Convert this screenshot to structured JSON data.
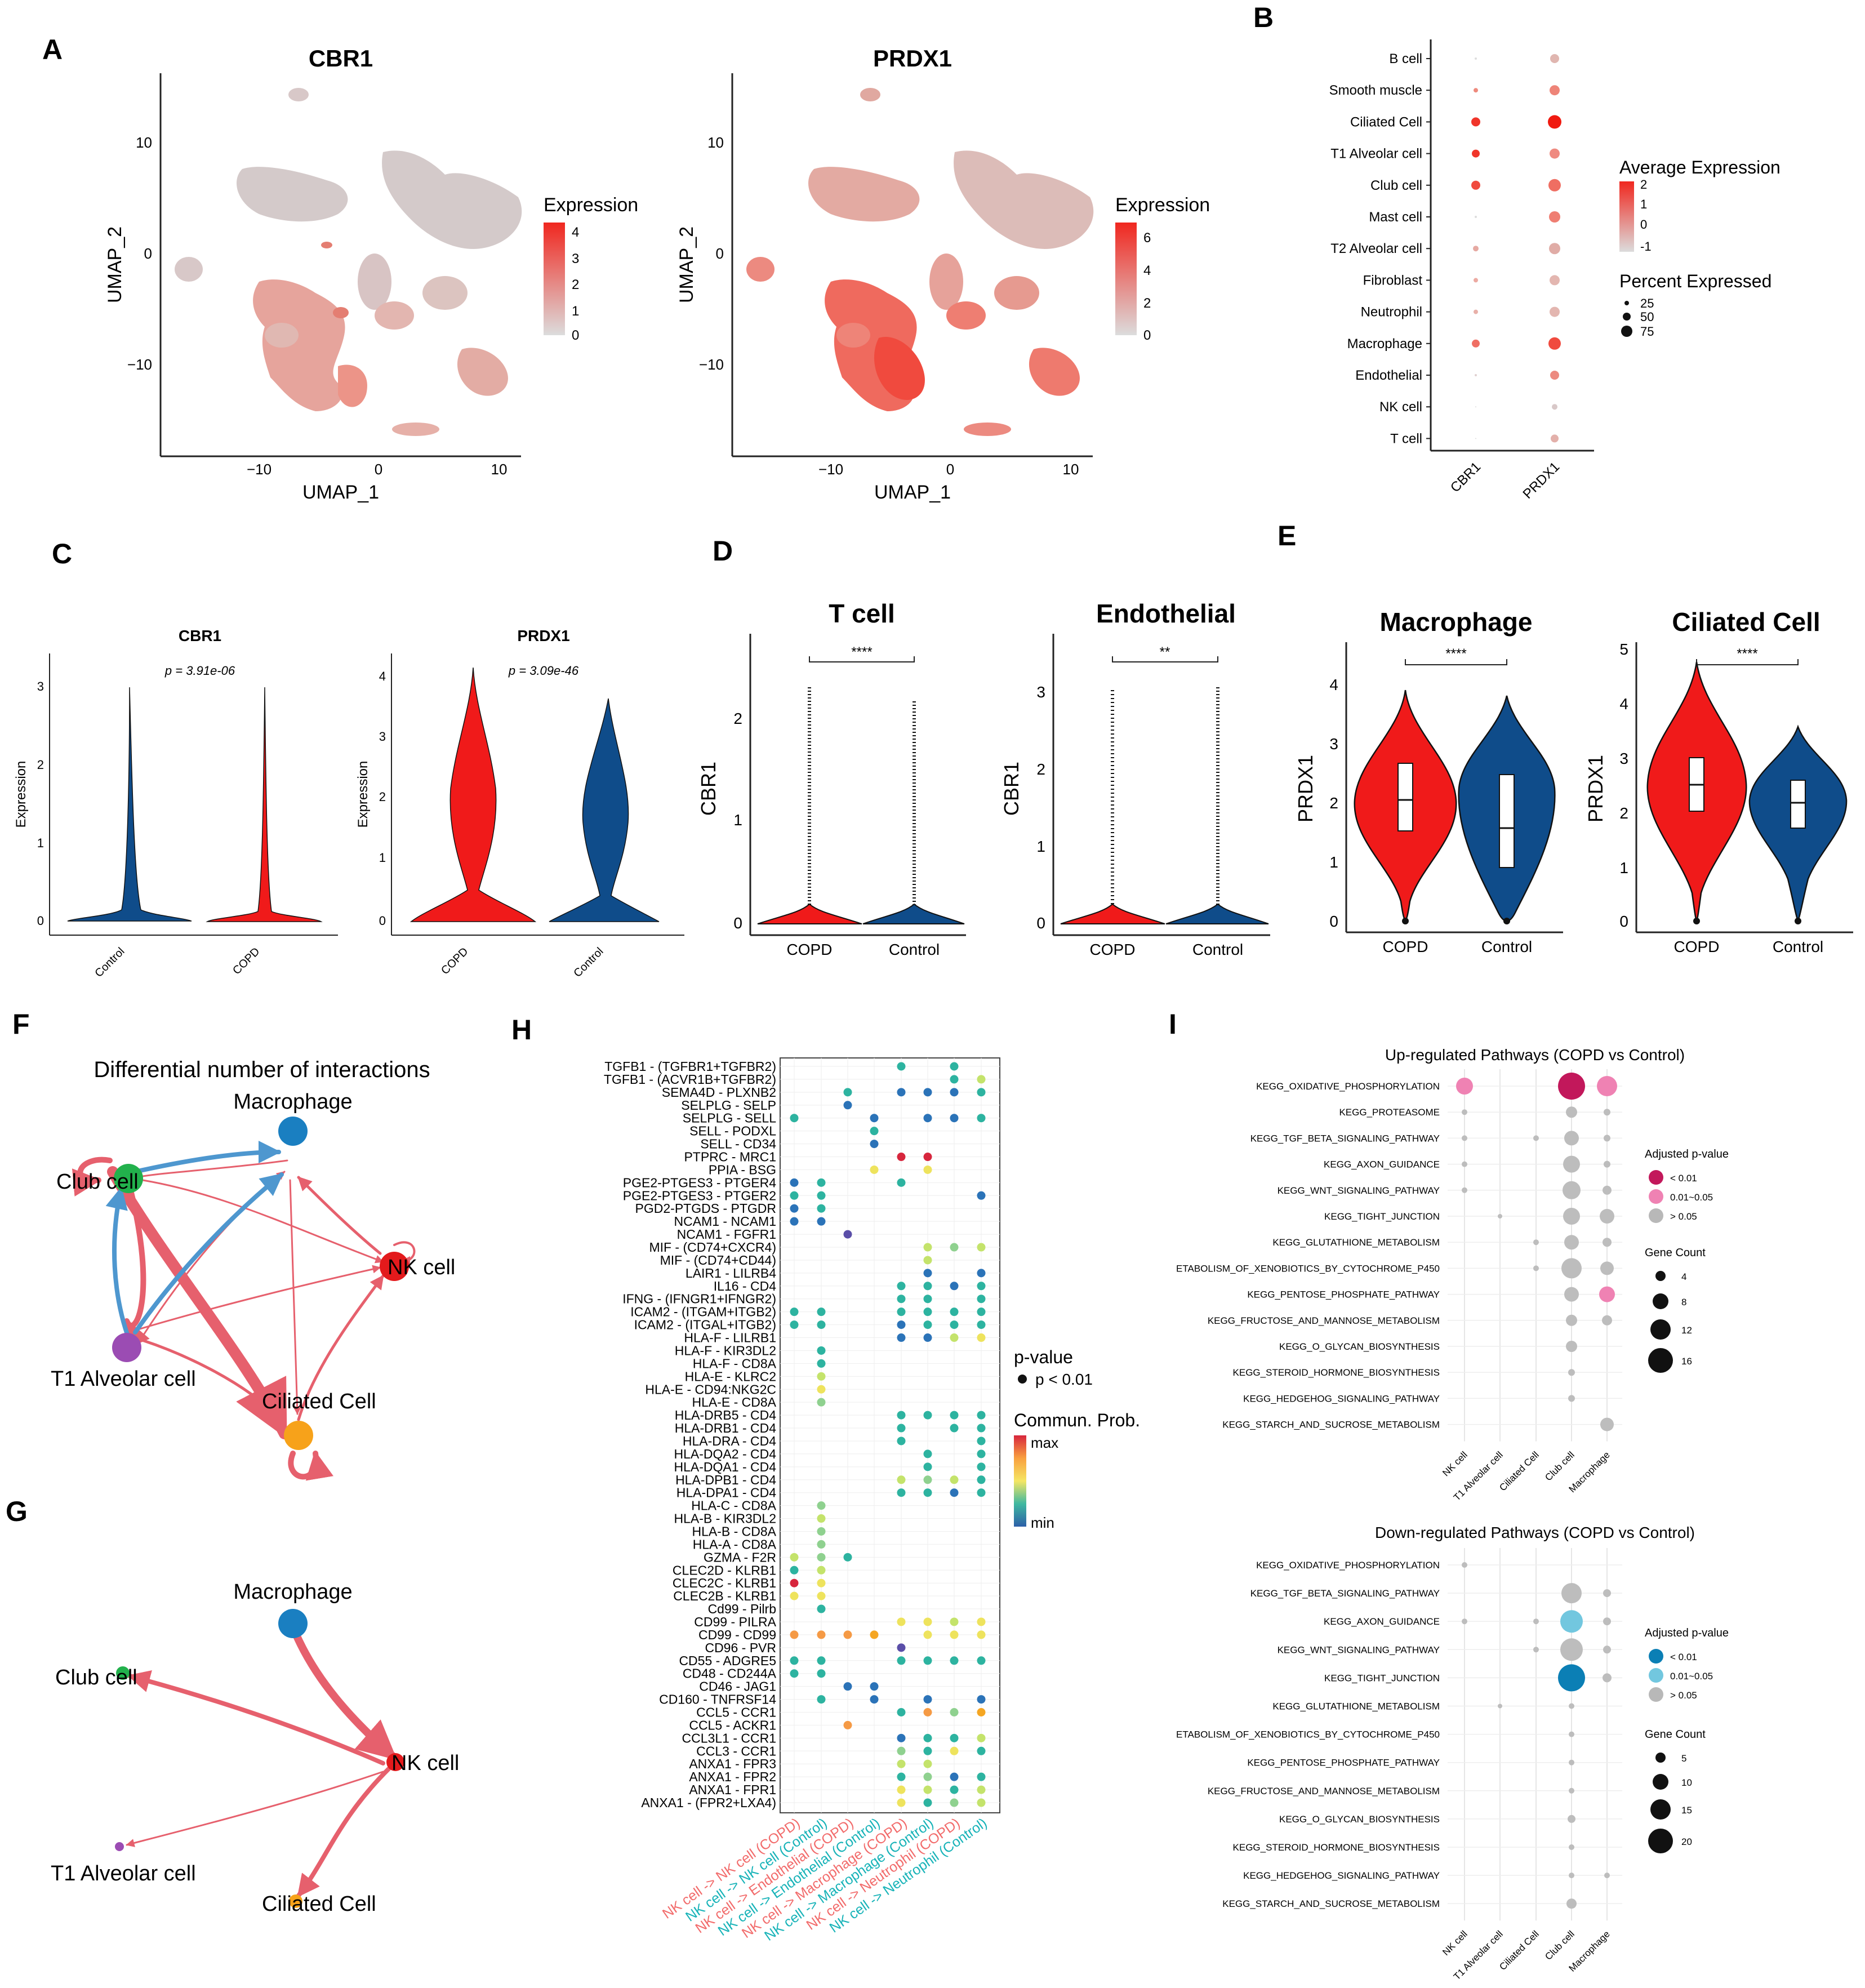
{
  "panels": {
    "A": {
      "letter": "A",
      "plots": [
        {
          "title": "CBR1",
          "legend_title": "Expression",
          "legend_ticks": [
            "4",
            "3",
            "2",
            "1",
            "0"
          ],
          "xlabel": "UMAP_1",
          "ylabel": "UMAP_2",
          "xticks": [
            "−10",
            "0",
            "10"
          ],
          "yticks": [
            "10",
            "0",
            "−10"
          ]
        },
        {
          "title": "PRDX1",
          "legend_title": "Expression",
          "legend_ticks": [
            "6",
            "4",
            "2",
            "0"
          ],
          "xlabel": "UMAP_1",
          "ylabel": "UMAP_2",
          "xticks": [
            "−10",
            "0",
            "10"
          ],
          "yticks": [
            "10",
            "0",
            "−10"
          ]
        }
      ]
    },
    "B": {
      "letter": "B",
      "rows": [
        "B cell",
        "Smooth muscle",
        "Ciliated Cell",
        "T1 Alveolar cell",
        "Club cell",
        "Mast cell",
        "T2 Alveolar cell",
        "Fibroblast",
        "Neutrophil",
        "Macrophage",
        "Endothelial",
        "NK cell",
        "T cell"
      ],
      "cols": [
        "CBR1",
        "PRDX1"
      ],
      "legend_avg_title": "Average Expression",
      "legend_avg_ticks": [
        "2",
        "1",
        "0",
        "-1"
      ],
      "legend_pct_title": "Percent Expressed",
      "legend_pct_ticks": [
        "25",
        "50",
        "75"
      ]
    },
    "C": {
      "letter": "C",
      "plots": [
        {
          "title": "CBR1",
          "pvalue": "p = 3.91e-06",
          "ylabel": "Expression",
          "yticks": [
            "3",
            "2",
            "1",
            "0"
          ],
          "groups": [
            "Control",
            "COPD"
          ]
        },
        {
          "title": "PRDX1",
          "pvalue": "p = 3.09e-46",
          "ylabel": "Expression",
          "yticks": [
            "4",
            "3",
            "2",
            "1",
            "0"
          ],
          "groups": [
            "COPD",
            "Control"
          ]
        }
      ]
    },
    "D": {
      "letter": "D",
      "plots": [
        {
          "title": "T cell",
          "sig": "****",
          "ylabel": "CBR1",
          "yticks": [
            "2",
            "1",
            "0"
          ],
          "groups": [
            "COPD",
            "Control"
          ]
        },
        {
          "title": "Endothelial",
          "sig": "**",
          "ylabel": "CBR1",
          "yticks": [
            "3",
            "2",
            "1",
            "0"
          ],
          "groups": [
            "COPD",
            "Control"
          ]
        }
      ]
    },
    "E": {
      "letter": "E",
      "plots": [
        {
          "title": "Macrophage",
          "sig": "****",
          "ylabel": "PRDX1",
          "yticks": [
            "4",
            "3",
            "2",
            "1",
            "0"
          ],
          "groups": [
            "COPD",
            "Control"
          ]
        },
        {
          "title": "Ciliated Cell",
          "sig": "****",
          "ylabel": "PRDX1",
          "yticks": [
            "5",
            "4",
            "3",
            "2",
            "1",
            "0"
          ],
          "groups": [
            "COPD",
            "Control"
          ]
        }
      ]
    },
    "F": {
      "letter": "F",
      "title": "Differential number of interactions",
      "nodes": [
        "Macrophage",
        "Club cell",
        "NK cell",
        "T1 Alveolar cell",
        "Ciliated Cell"
      ]
    },
    "G": {
      "letter": "G",
      "nodes": [
        "Macrophage",
        "Club cell",
        "NK cell",
        "T1 Alveolar cell",
        "Ciliated Cell"
      ]
    },
    "H": {
      "letter": "H",
      "rows": [
        "TGFB1 - (TGFBR1+TGFBR2)",
        "TGFB1 - (ACVR1B+TGFBR2)",
        "SEMA4D - PLXNB2",
        "SELPLG - SELP",
        "SELPLG - SELL",
        "SELL - PODXL",
        "SELL - CD34",
        "PTPRC - MRC1",
        "PPIA - BSG",
        "PGE2-PTGES3 - PTGER4",
        "PGE2-PTGES3 - PTGER2",
        "PGD2-PTGDS - PTGDR",
        "NCAM1 - NCAM1",
        "NCAM1 - FGFR1",
        "MIF - (CD74+CXCR4)",
        "MIF - (CD74+CD44)",
        "LAIR1 - LILRB4",
        "IL16 - CD4",
        "IFNG - (IFNGR1+IFNGR2)",
        "ICAM2 - (ITGAM+ITGB2)",
        "ICAM2 - (ITGAL+ITGB2)",
        "HLA-F - LILRB1",
        "HLA-F - KIR3DL2",
        "HLA-F - CD8A",
        "HLA-E - KLRC2",
        "HLA-E - CD94:NKG2C",
        "HLA-E - CD8A",
        "HLA-DRB5 - CD4",
        "HLA-DRB1 - CD4",
        "HLA-DRA - CD4",
        "HLA-DQA2 - CD4",
        "HLA-DQA1 - CD4",
        "HLA-DPB1 - CD4",
        "HLA-DPA1 - CD4",
        "HLA-C - CD8A",
        "HLA-B - KIR3DL2",
        "HLA-B - CD8A",
        "HLA-A - CD8A",
        "GZMA - F2R",
        "CLEC2D - KLRB1",
        "CLEC2C - KLRB1",
        "CLEC2B - KLRB1",
        "Cd99 - Pilrb",
        "CD99 - PILRA",
        "CD99 - CD99",
        "CD96 - PVR",
        "CD55 - ADGRE5",
        "CD48 - CD244A",
        "CD46 - JAG1",
        "CD160 - TNFRSF14",
        "CCL5 - CCR1",
        "CCL5 - ACKR1",
        "CCL3L1 - CCR1",
        "CCL3 - CCR1",
        "ANXA1 - FPR3",
        "ANXA1 - FPR2",
        "ANXA1 - FPR1",
        "ANXA1 - (FPR2+LXA4)"
      ],
      "cols": [
        {
          "label": "NK cell -> NK cell (COPD)",
          "color": "#f26b6b"
        },
        {
          "label": "NK cell -> NK cell (Control)",
          "color": "#17b3b8"
        },
        {
          "label": "NK cell -> Endothelial (COPD)",
          "color": "#f26b6b"
        },
        {
          "label": "NK cell -> Endothelial (Control)",
          "color": "#17b3b8"
        },
        {
          "label": "NK cell -> Macrophage (COPD)",
          "color": "#f26b6b"
        },
        {
          "label": "NK cell -> Macrophage (Control)",
          "color": "#17b3b8"
        },
        {
          "label": "NK cell -> Neutrophil (COPD)",
          "color": "#f26b6b"
        },
        {
          "label": "NK cell -> Neutrophil (Control)",
          "color": "#17b3b8"
        }
      ],
      "legend_p_title": "p-value",
      "legend_p_item": "p < 0.01",
      "legend_c_title": "Commun. Prob.",
      "legend_c_max": "max",
      "legend_c_min": "min"
    },
    "I": {
      "letter": "I",
      "up": {
        "title": "Up-regulated Pathways (COPD vs Control)",
        "rows": [
          "KEGG_OXIDATIVE_PHOSPHORYLATION",
          "KEGG_PROTEASOME",
          "KEGG_TGF_BETA_SIGNALING_PATHWAY",
          "KEGG_AXON_GUIDANCE",
          "KEGG_WNT_SIGNALING_PATHWAY",
          "KEGG_TIGHT_JUNCTION",
          "KEGG_GLUTATHIONE_METABOLISM",
          "ETABOLISM_OF_XENOBIOTICS_BY_CYTOCHROME_P450",
          "KEGG_PENTOSE_PHOSPHATE_PATHWAY",
          "KEGG_FRUCTOSE_AND_MANNOSE_METABOLISM",
          "KEGG_O_GLYCAN_BIOSYNTHESIS",
          "KEGG_STEROID_HORMONE_BIOSYNTHESIS",
          "KEGG_HEDGEHOG_SIGNALING_PATHWAY",
          "KEGG_STARCH_AND_SUCROSE_METABOLISM"
        ],
        "legend_adj_title": "Adjusted p-value",
        "legend_adj_items": [
          "< 0.01",
          "0.01~0.05",
          "> 0.05"
        ],
        "legend_gc_title": "Gene Count",
        "legend_gc_items": [
          "4",
          "8",
          "12",
          "16"
        ]
      },
      "down": {
        "title": "Down-regulated Pathways (COPD vs Control)",
        "rows": [
          "KEGG_OXIDATIVE_PHOSPHORYLATION",
          "KEGG_TGF_BETA_SIGNALING_PATHWAY",
          "KEGG_AXON_GUIDANCE",
          "KEGG_WNT_SIGNALING_PATHWAY",
          "KEGG_TIGHT_JUNCTION",
          "KEGG_GLUTATHIONE_METABOLISM",
          "ETABOLISM_OF_XENOBIOTICS_BY_CYTOCHROME_P450",
          "KEGG_PENTOSE_PHOSPHATE_PATHWAY",
          "KEGG_FRUCTOSE_AND_MANNOSE_METABOLISM",
          "KEGG_O_GLYCAN_BIOSYNTHESIS",
          "KEGG_STEROID_HORMONE_BIOSYNTHESIS",
          "KEGG_HEDGEHOG_SIGNALING_PATHWAY",
          "KEGG_STARCH_AND_SUCROSE_METABOLISM"
        ],
        "legend_adj_title": "Adjusted p-value",
        "legend_adj_items": [
          "< 0.01",
          "0.01~0.05",
          "> 0.05"
        ],
        "legend_gc_title": "Gene Count",
        "legend_gc_items": [
          "5",
          "10",
          "15",
          "20"
        ]
      },
      "cols": [
        "NK cell",
        "T1 Alveolar cell",
        "Ciliated Cell",
        "Club cell",
        "Macrophage"
      ]
    }
  },
  "colors": {
    "copd": "#f01a1a",
    "control": "#0f4c8a",
    "expr_high": "#f0271f",
    "expr_low": "#d9d9d9",
    "edge_up": "#e6606d",
    "edge_down": "#4e97cf"
  }
}
